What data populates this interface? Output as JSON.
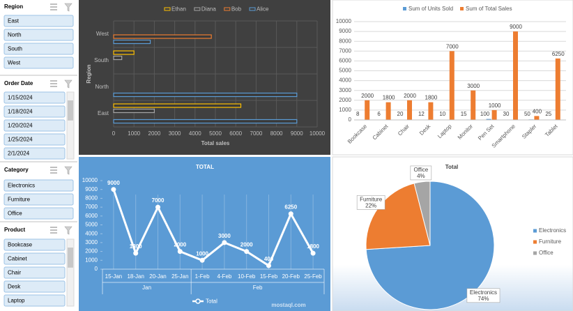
{
  "slicers": [
    {
      "title": "Region",
      "items": [
        "East",
        "North",
        "South",
        "West"
      ]
    },
    {
      "title": "Order Date",
      "items": [
        "1/15/2024",
        "1/18/2024",
        "1/20/2024",
        "1/25/2024",
        "2/1/2024"
      ]
    },
    {
      "title": "Category",
      "items": [
        "Electronics",
        "Furniture",
        "Office"
      ]
    },
    {
      "title": "Product",
      "items": [
        "Bookcase",
        "Cabinet",
        "Chair",
        "Desk",
        "Laptop"
      ]
    }
  ],
  "chart_data": [
    {
      "type": "bar",
      "orientation": "horizontal",
      "x_label": "Total sales",
      "y_label": "Region",
      "categories": [
        "East",
        "North",
        "South",
        "West"
      ],
      "series": [
        {
          "name": "Ethan",
          "color": "#ffc000",
          "values": [
            6250,
            null,
            1000,
            null
          ]
        },
        {
          "name": "Diana",
          "color": "#a5a5a5",
          "values": [
            2000,
            null,
            400,
            null
          ]
        },
        {
          "name": "Bob",
          "color": "#ed7d31",
          "values": [
            null,
            null,
            null,
            4800
          ]
        },
        {
          "name": "Alice",
          "color": "#5b9bd5",
          "values": [
            9000,
            9000,
            null,
            1800
          ]
        }
      ],
      "xlim": [
        0,
        10000
      ],
      "xticks": [
        0,
        1000,
        2000,
        3000,
        4000,
        5000,
        6000,
        7000,
        8000,
        9000,
        10000
      ],
      "grid": true
    },
    {
      "type": "bar",
      "orientation": "vertical",
      "categories": [
        "Bookcase",
        "Cabinet",
        "Chair",
        "Desk",
        "Laptop",
        "Monitor",
        "Pen Set",
        "Smartphone",
        "Stapler",
        "Tablet"
      ],
      "series": [
        {
          "name": "Sum of Units Sold",
          "color": "#5b9bd5",
          "values": [
            8,
            6,
            20,
            12,
            10,
            15,
            100,
            30,
            50,
            25
          ]
        },
        {
          "name": "Sum of Total Sales",
          "color": "#ed7d31",
          "values": [
            2000,
            1800,
            2000,
            1800,
            7000,
            3000,
            1000,
            9000,
            400,
            6250
          ]
        }
      ],
      "ylim": [
        0,
        10000
      ],
      "yticks": [
        0,
        1000,
        2000,
        3000,
        4000,
        5000,
        6000,
        7000,
        8000,
        9000,
        10000
      ],
      "grid": true
    },
    {
      "type": "line",
      "title": "TOTAL",
      "categories": [
        "15-Jan",
        "18-Jan",
        "20-Jan",
        "25-Jan",
        "1-Feb",
        "4-Feb",
        "10-Feb",
        "15-Feb",
        "20-Feb",
        "25-Feb"
      ],
      "category_groups": [
        "Jan",
        "Feb"
      ],
      "series": [
        {
          "name": "Total",
          "color": "#ffffff",
          "values": [
            9000,
            1800,
            7000,
            2000,
            1000,
            3000,
            2000,
            400,
            6250,
            1800
          ]
        }
      ],
      "ylim": [
        0,
        10000
      ],
      "yticks": [
        0,
        1000,
        2000,
        3000,
        4000,
        5000,
        6000,
        7000,
        8000,
        9000,
        10000
      ]
    },
    {
      "type": "pie",
      "title": "Total",
      "categories": [
        "Electronics",
        "Furniture",
        "Office"
      ],
      "values": [
        74,
        22,
        4
      ],
      "value_labels": [
        "74%",
        "22%",
        "4%"
      ],
      "colors": [
        "#5b9bd5",
        "#ed7d31",
        "#a5a5a5"
      ],
      "legend": "right"
    }
  ],
  "watermark": "mostaql.com"
}
